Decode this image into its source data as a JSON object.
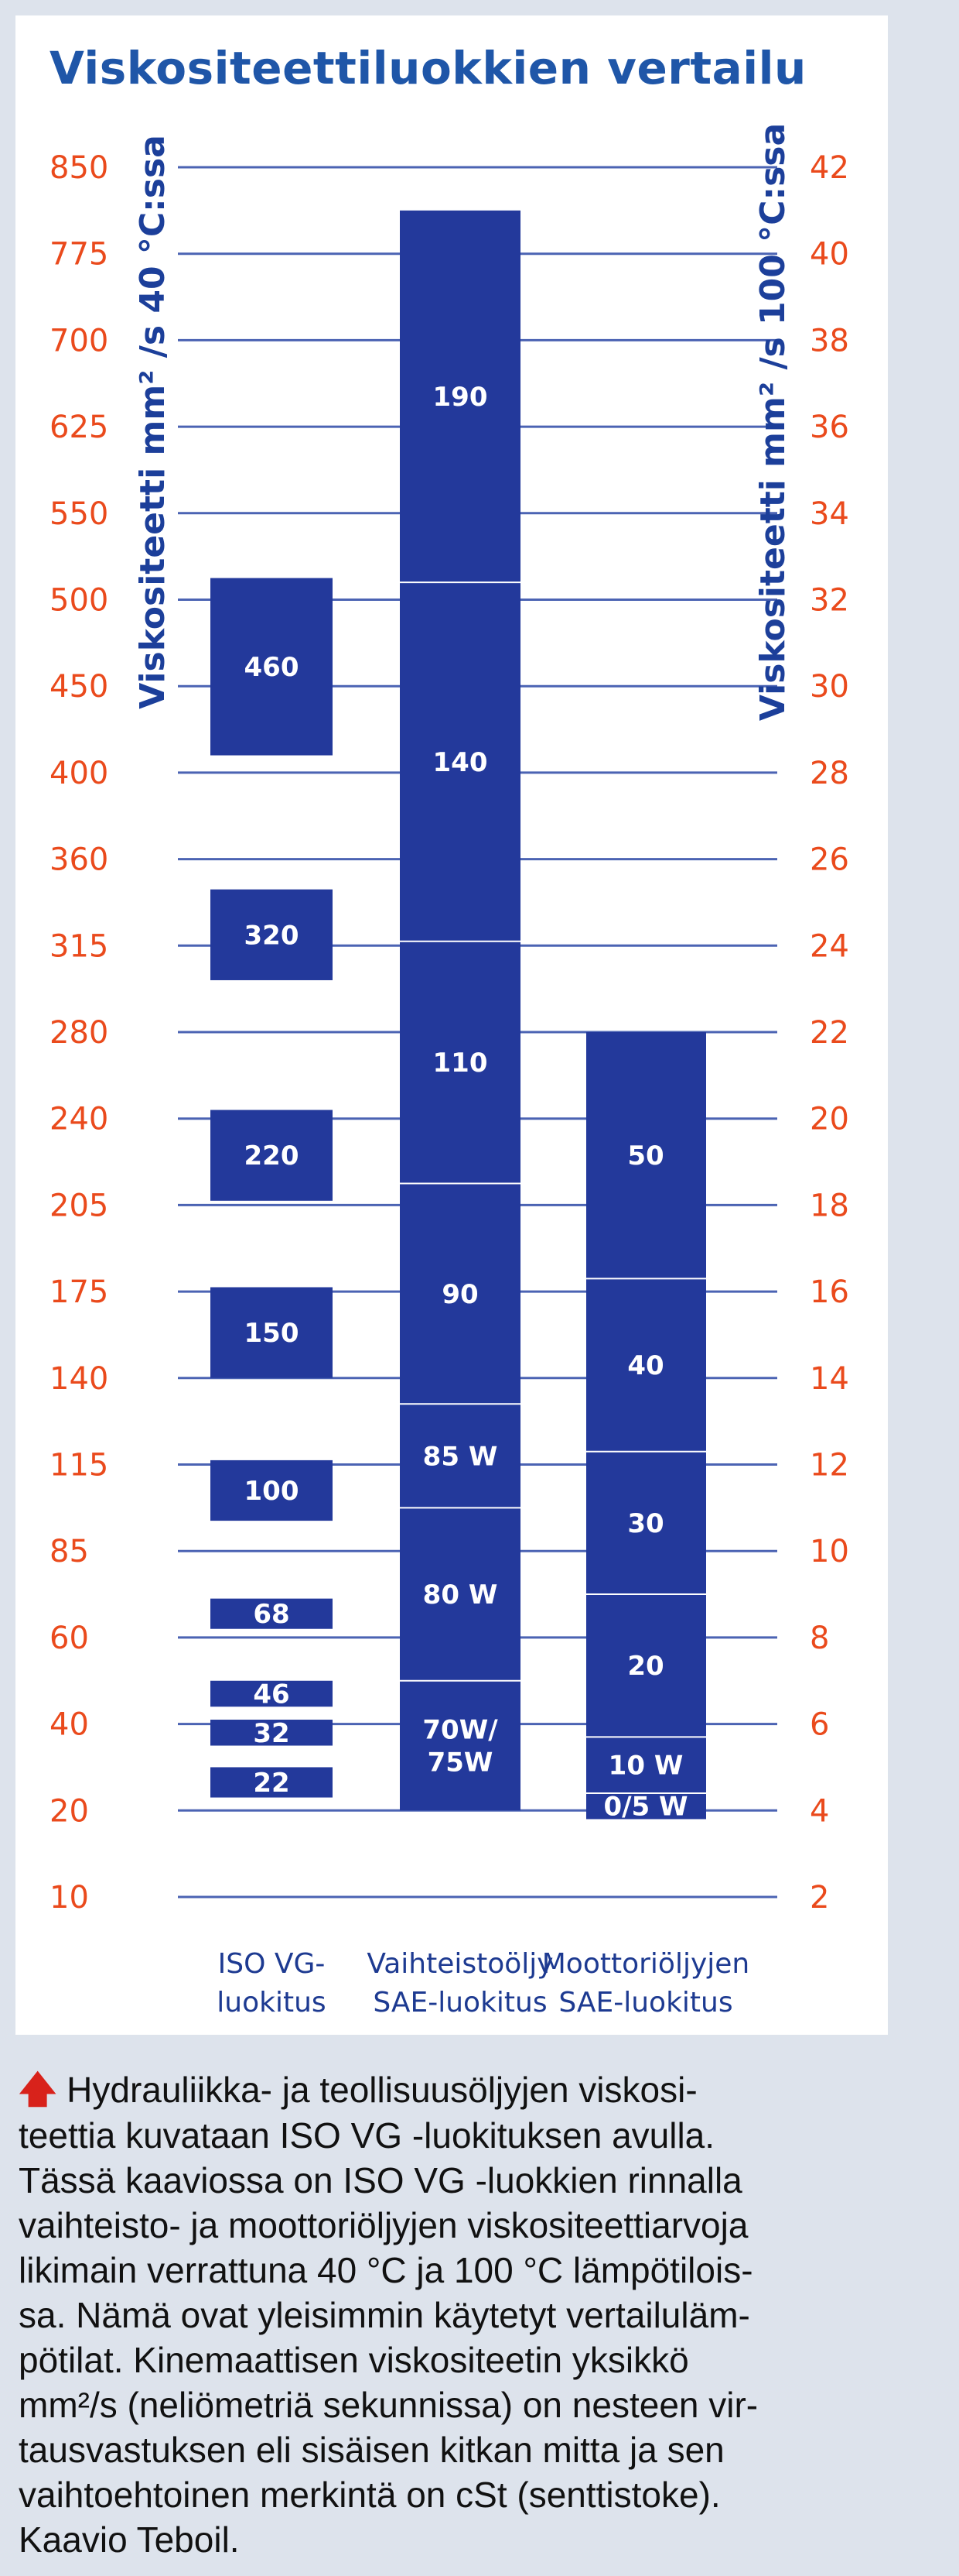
{
  "chart_data": {
    "type": "bar",
    "title": "Viskositeettiluokkien vertailu",
    "ylabel_left": "Viskositeetti mm² /s 40 °C:ssa",
    "ylabel_right": "Viskositeetti mm² /s 100 °C:ssa",
    "left_ticks": [
      "850",
      "775",
      "700",
      "625",
      "550",
      "500",
      "450",
      "400",
      "360",
      "315",
      "280",
      "240",
      "205",
      "175",
      "140",
      "115",
      "85",
      "60",
      "40",
      "20",
      "10"
    ],
    "right_ticks": [
      "42",
      "40",
      "38",
      "36",
      "34",
      "32",
      "30",
      "28",
      "26",
      "24",
      "22",
      "20",
      "18",
      "16",
      "14",
      "12",
      "10",
      "8",
      "6",
      "4",
      "2"
    ],
    "grid": true,
    "categories": [
      {
        "line1": "ISO VG-",
        "line2": "luokitus"
      },
      {
        "line1": "Vaihteistoöljy",
        "line2": "SAE-luokitus"
      },
      {
        "line1": "Moottoriöljyjen",
        "line2": "SAE-luokitus"
      }
    ],
    "series": [
      {
        "segments": [
          {
            "label": "22",
            "low": 4.3,
            "high": 5.0
          },
          {
            "label": "32",
            "low": 5.5,
            "high": 6.1
          },
          {
            "label": "46",
            "low": 6.4,
            "high": 7.0
          },
          {
            "label": "68",
            "low": 8.2,
            "high": 8.9
          },
          {
            "label": "100",
            "low": 10.7,
            "high": 12.1
          },
          {
            "label": "150",
            "low": 14.0,
            "high": 16.1
          },
          {
            "label": "220",
            "low": 18.1,
            "high": 20.2
          },
          {
            "label": "320",
            "low": 23.2,
            "high": 25.3
          },
          {
            "label": "460",
            "low": 28.4,
            "high": 32.5
          }
        ]
      },
      {
        "segments": [
          {
            "label": "70W/\n75W",
            "low": 4.0,
            "high": 7.0
          },
          {
            "label": "80 W",
            "low": 7.0,
            "high": 11.0
          },
          {
            "label": "85 W",
            "low": 11.0,
            "high": 13.4
          },
          {
            "label": "90",
            "low": 13.4,
            "high": 18.5
          },
          {
            "label": "110",
            "low": 18.5,
            "high": 24.1
          },
          {
            "label": "140",
            "low": 24.1,
            "high": 32.4
          },
          {
            "label": "190",
            "low": 32.4,
            "high": 41.0
          }
        ]
      },
      {
        "segments": [
          {
            "label": "0/5 W",
            "low": 3.8,
            "high": 4.4
          },
          {
            "label": "10 W",
            "low": 4.4,
            "high": 5.7
          },
          {
            "label": "20",
            "low": 5.7,
            "high": 9.0
          },
          {
            "label": "30",
            "low": 9.0,
            "high": 12.3
          },
          {
            "label": "40",
            "low": 12.3,
            "high": 16.3
          },
          {
            "label": "50",
            "low": 16.3,
            "high": 22.0
          }
        ]
      }
    ]
  },
  "caption": {
    "icon": "arrow-up-icon",
    "text": "Hydrauliikka- ja teollisuusöljyjen viskosi-\nteettia kuvataan ISO VG -luokituksen avulla.\nTässä kaaviossa on ISO VG -luokkien rinnalla\nvaihteisto- ja moottoriöljyjen viskositeettiarvoja\nlikimain verrattuna 40 °C ja 100 °C lämpötilois-\nsa. Nämä ovat yleisimmin käytetyt vertailuläm-\npötilat. Kinemaattisen viskositeetin yksikkö\nmm²/s (neliömetriä sekunnissa) on nesteen vir-\ntausvastuksen eli sisäisen kitkan mitta ja sen\nvaihtoehtoinen merkintä on cSt (senttistoke).\nKaavio Teboil."
  },
  "colors": {
    "bar": "#23399b",
    "tick": "#ea4a1c",
    "title": "#1f56a8",
    "arrow": "#d8221b"
  }
}
